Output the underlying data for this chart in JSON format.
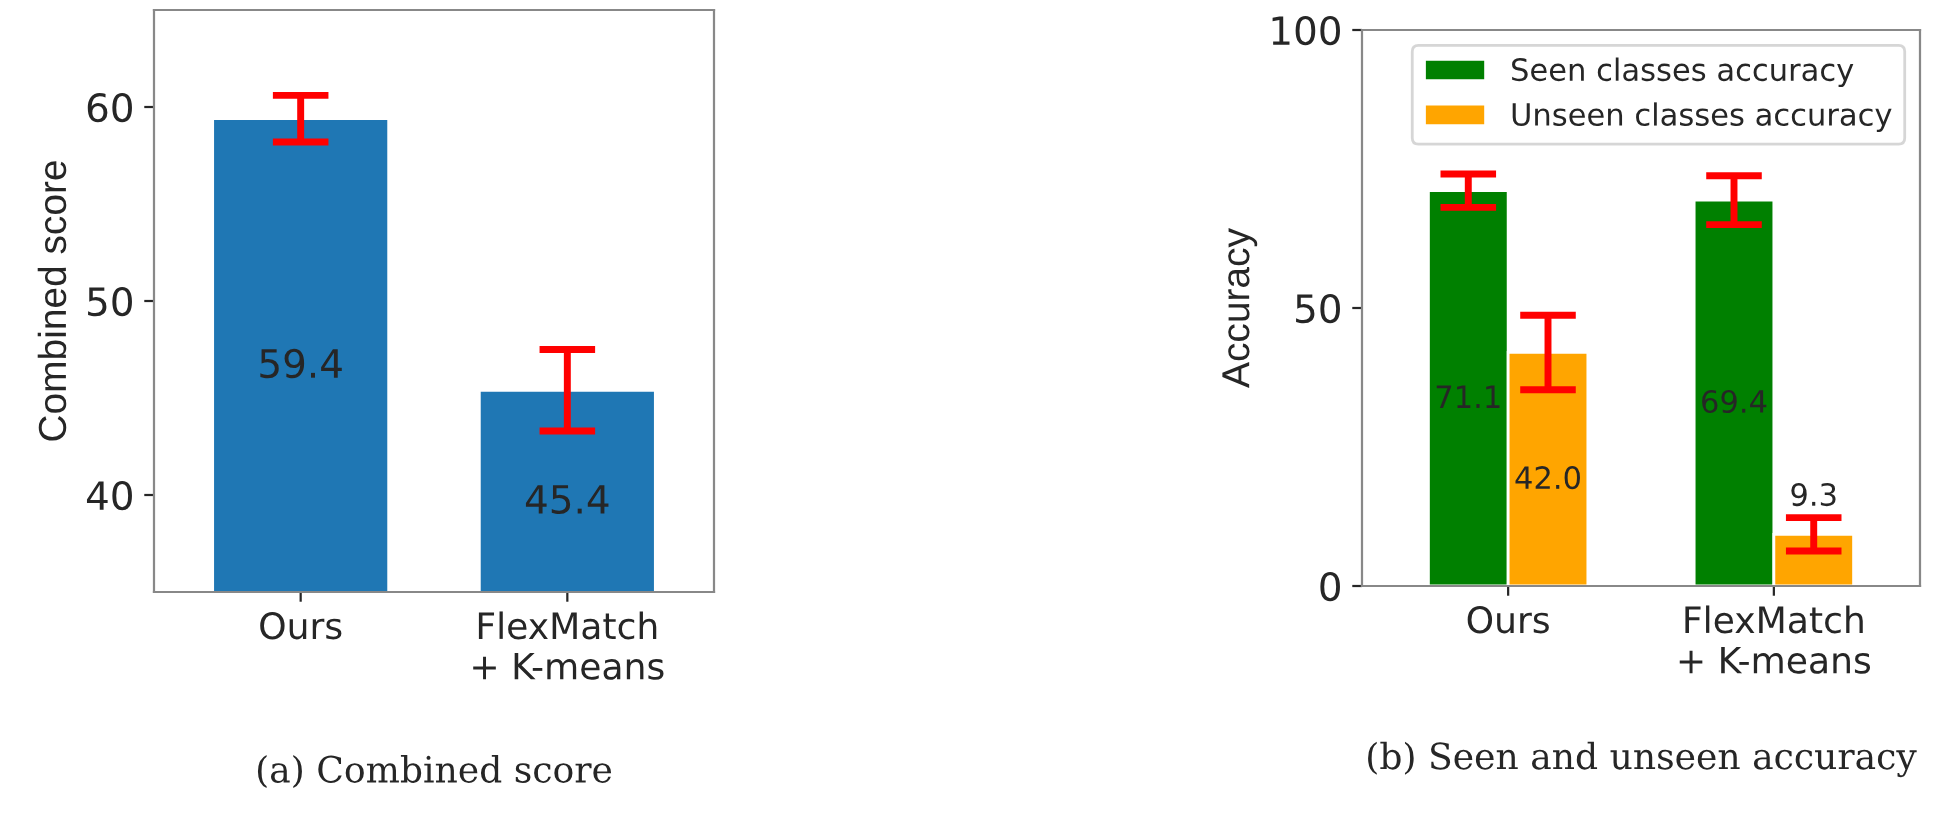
{
  "chart_data": [
    {
      "type": "bar",
      "title": "(a) Combined score",
      "ylabel": "Combined score",
      "categories": [
        "Ours",
        "FlexMatch\n+ K-means"
      ],
      "series": [
        {
          "color": "#1f77b4",
          "values": [
            59.4,
            45.4
          ],
          "value_labels": [
            "59.4",
            "45.4"
          ],
          "errors": [
            1.2,
            2.1
          ]
        }
      ],
      "ylim": [
        35,
        65
      ],
      "yticks": [
        40,
        50,
        60
      ],
      "grid": false,
      "legend": false
    },
    {
      "type": "bar",
      "title": "(b) Seen and unseen accuracy",
      "ylabel": "Accuracy",
      "categories": [
        "Ours",
        "FlexMatch\n+ K-means"
      ],
      "series": [
        {
          "name": "Seen classes accuracy",
          "color": "#008000",
          "values": [
            71.1,
            69.4
          ],
          "value_labels": [
            "71.1",
            "69.4"
          ],
          "errors": [
            3.0,
            4.4
          ]
        },
        {
          "name": "Unseen classes accuracy",
          "color": "#ffa500",
          "values": [
            42.0,
            9.3
          ],
          "value_labels": [
            "42.0",
            "9.3"
          ],
          "errors": [
            6.7,
            3.0
          ]
        }
      ],
      "ylim": [
        0,
        100
      ],
      "yticks": [
        0,
        50,
        100
      ],
      "grid": false,
      "legend": "top right"
    }
  ]
}
